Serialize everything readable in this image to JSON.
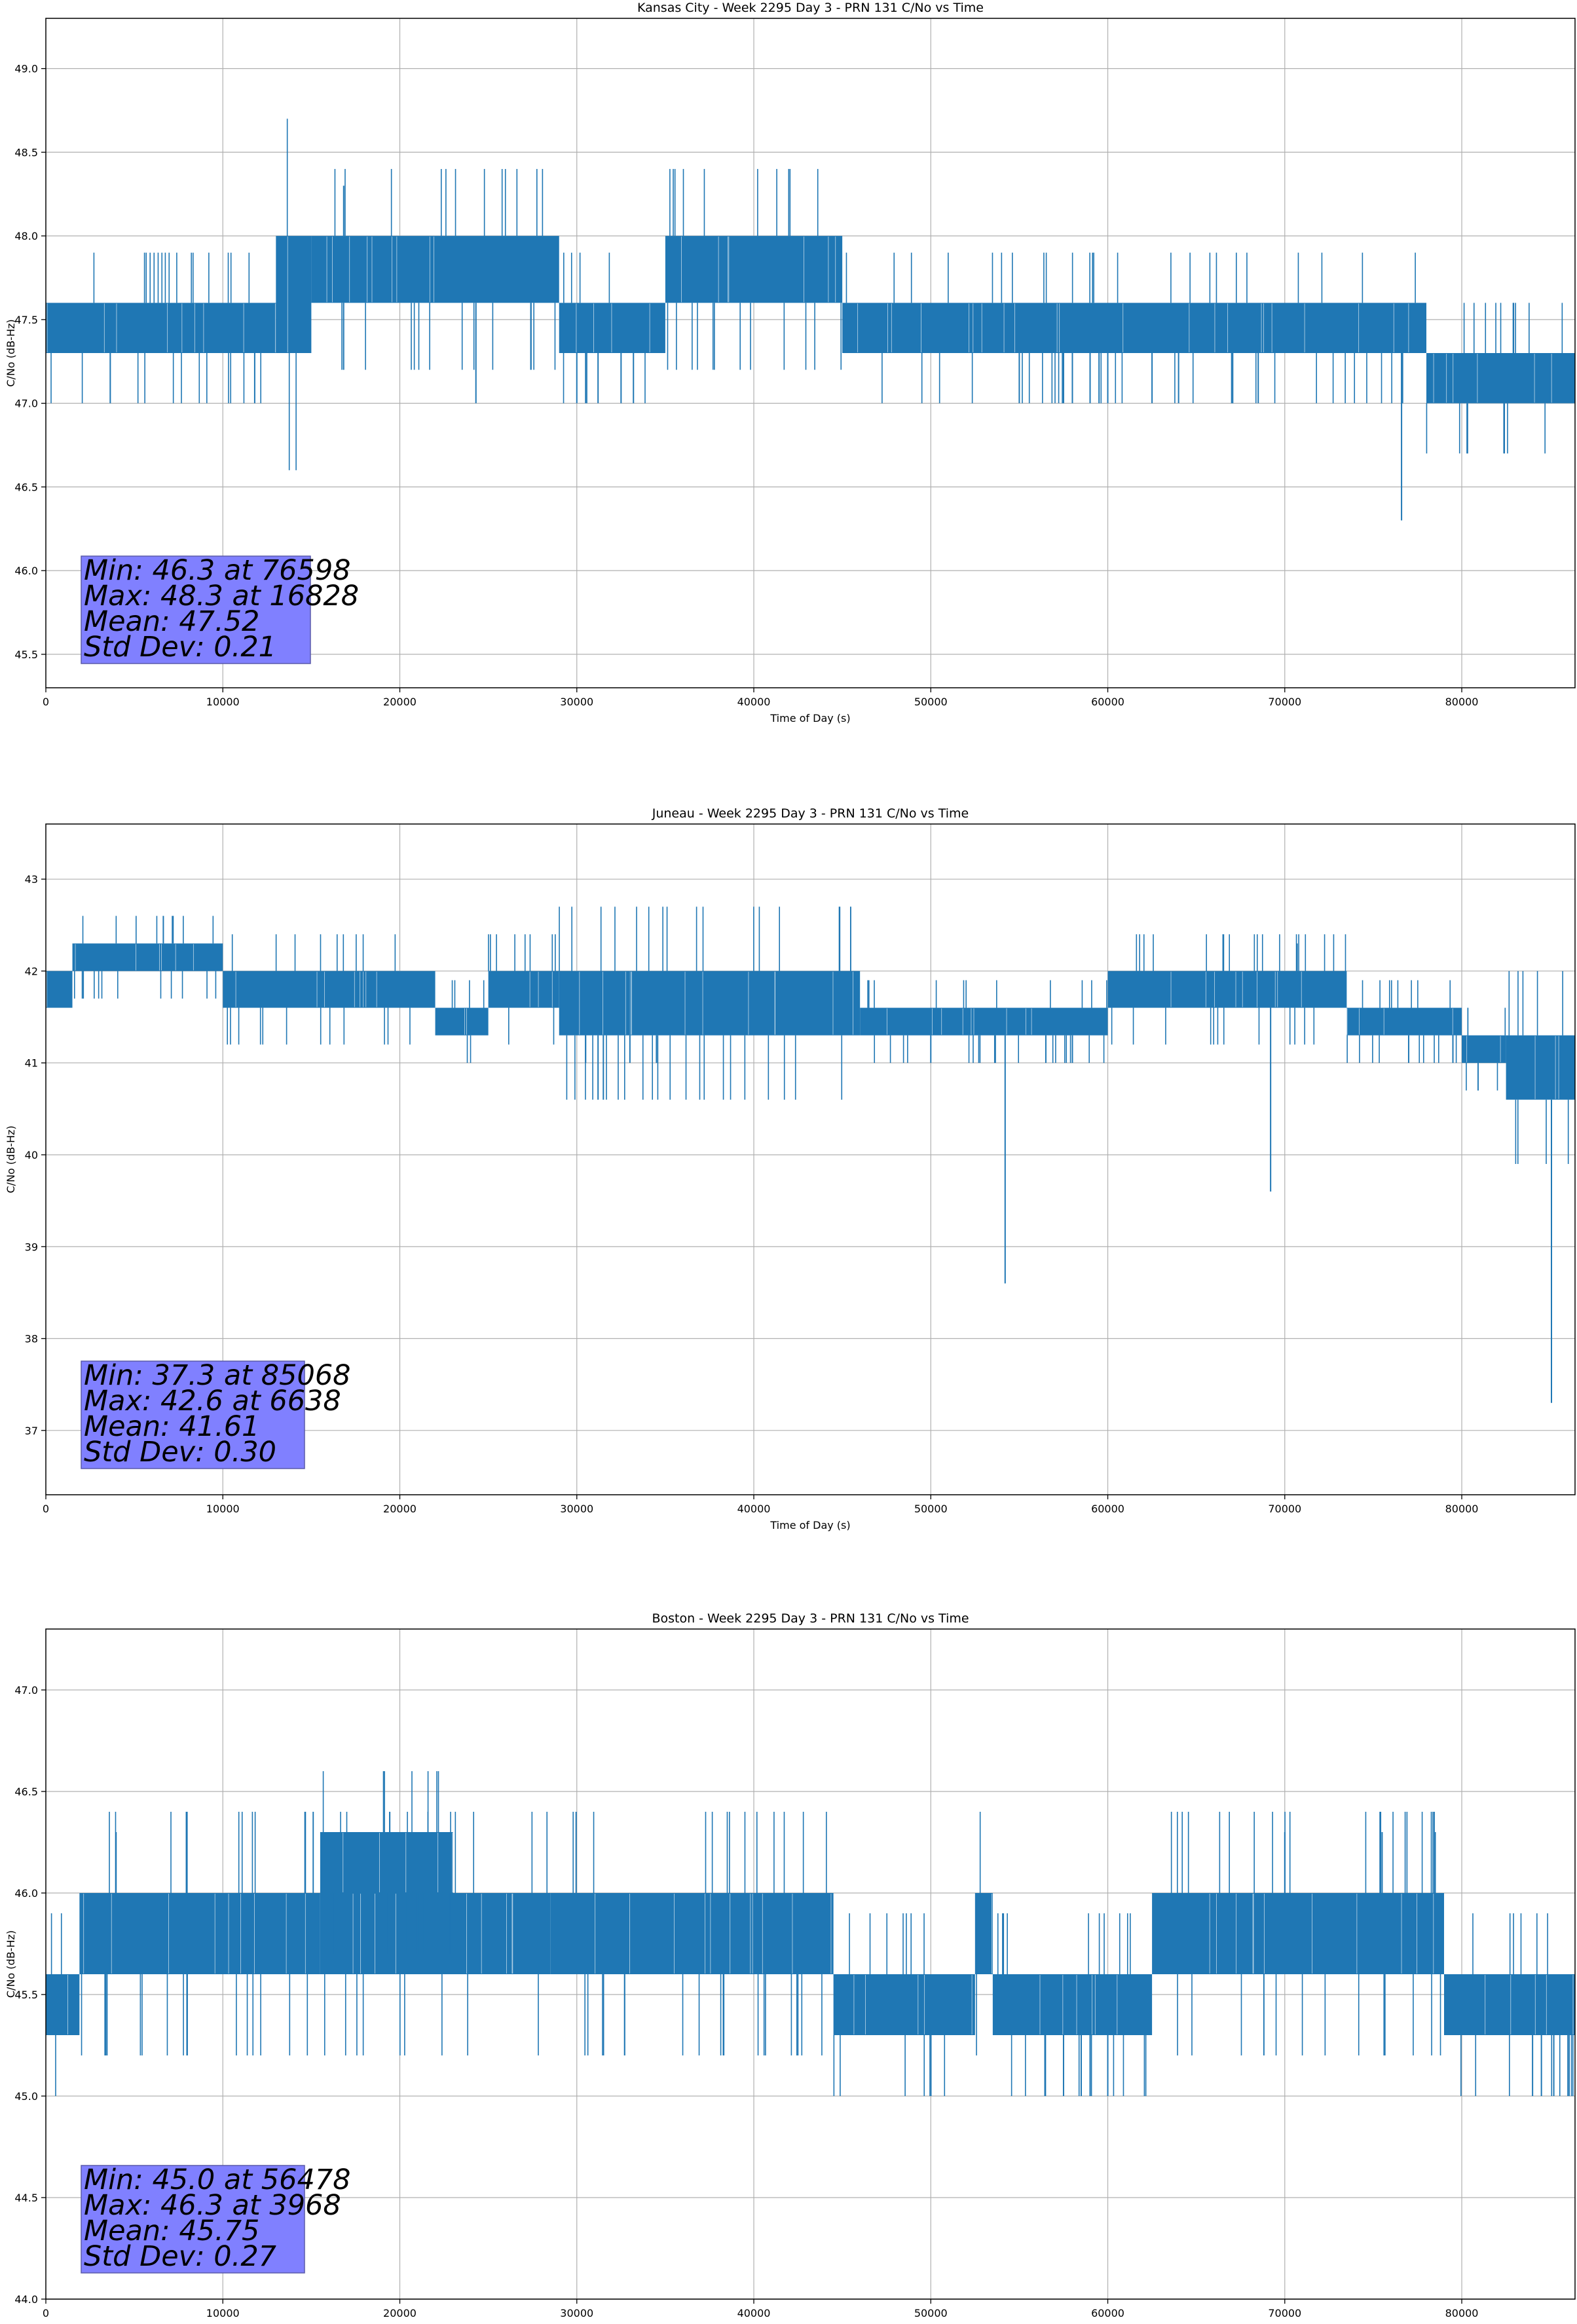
{
  "colors": {
    "line": "#1f77b4",
    "grid": "#b0b0b0",
    "stats_box_fill": "#8080ff",
    "stats_box_edge": "#5a5aaa",
    "axes": "#000000"
  },
  "chart_data": [
    {
      "type": "line",
      "title": "Kansas City - Week 2295 Day 3 - PRN 131 C/No vs Time",
      "xlabel": "Time of Day (s)",
      "ylabel": "C/No (dB-Hz)",
      "xlim": [
        0,
        86400
      ],
      "ylim": [
        45.3,
        49.3
      ],
      "xticks": [
        0,
        10000,
        20000,
        30000,
        40000,
        50000,
        60000,
        70000,
        80000
      ],
      "yticks": [
        45.5,
        46.0,
        46.5,
        47.0,
        47.5,
        48.0,
        48.5,
        49.0
      ],
      "ytick_labels": [
        "45.5",
        "46.0",
        "46.5",
        "47.0",
        "47.5",
        "48.0",
        "48.5",
        "49.0"
      ],
      "grid": true,
      "stats_lines": [
        "Min: 46.3 at 76598",
        "Max: 48.3 at 16828",
        "Mean: 47.52",
        "Std Dev: 0.21"
      ],
      "bands": [
        {
          "x": [
            0,
            13000
          ],
          "y": [
            47.3,
            47.6
          ]
        },
        {
          "x": [
            13000,
            15000
          ],
          "y": [
            47.3,
            48.0
          ]
        },
        {
          "x": [
            15000,
            29000
          ],
          "y": [
            47.6,
            48.0
          ]
        },
        {
          "x": [
            29000,
            35000
          ],
          "y": [
            47.3,
            47.6
          ]
        },
        {
          "x": [
            35000,
            45000
          ],
          "y": [
            47.6,
            48.0
          ]
        },
        {
          "x": [
            45000,
            78000
          ],
          "y": [
            47.3,
            47.6
          ]
        },
        {
          "x": [
            78000,
            86400
          ],
          "y": [
            47.0,
            47.3
          ]
        }
      ],
      "excursions": [
        {
          "x": 11800,
          "y": 47.0
        },
        {
          "x": 16828,
          "y": 48.3
        },
        {
          "x": 24300,
          "y": 47.0
        },
        {
          "x": 30000,
          "y": 47.0
        },
        {
          "x": 30500,
          "y": 47.0
        },
        {
          "x": 31200,
          "y": 47.0
        },
        {
          "x": 32500,
          "y": 47.0
        },
        {
          "x": 33200,
          "y": 47.0
        },
        {
          "x": 55000,
          "y": 47.0
        },
        {
          "x": 57500,
          "y": 47.0
        },
        {
          "x": 58000,
          "y": 47.0
        },
        {
          "x": 59000,
          "y": 47.0
        },
        {
          "x": 60000,
          "y": 47.0
        },
        {
          "x": 62500,
          "y": 47.0
        },
        {
          "x": 64000,
          "y": 47.0
        },
        {
          "x": 67000,
          "y": 47.0
        },
        {
          "x": 68500,
          "y": 47.0
        },
        {
          "x": 76598,
          "y": 46.3
        }
      ]
    },
    {
      "type": "line",
      "title": "Juneau - Week 2295 Day 3 - PRN 131 C/No vs Time",
      "xlabel": "Time of Day (s)",
      "ylabel": "C/No (dB-Hz)",
      "xlim": [
        0,
        86400
      ],
      "ylim": [
        36.3,
        43.6
      ],
      "xticks": [
        0,
        10000,
        20000,
        30000,
        40000,
        50000,
        60000,
        70000,
        80000
      ],
      "yticks": [
        37,
        38,
        39,
        40,
        41,
        42,
        43
      ],
      "ytick_labels": [
        "37",
        "38",
        "39",
        "40",
        "41",
        "42",
        "43"
      ],
      "grid": true,
      "stats_lines": [
        "Min: 37.3 at 85068",
        "Max: 42.6 at 6638",
        "Mean: 41.61",
        "Std Dev: 0.30"
      ],
      "bands": [
        {
          "x": [
            0,
            1500
          ],
          "y": [
            41.6,
            42.0
          ]
        },
        {
          "x": [
            1500,
            10000
          ],
          "y": [
            42.0,
            42.3
          ]
        },
        {
          "x": [
            10000,
            22000
          ],
          "y": [
            41.6,
            42.0
          ]
        },
        {
          "x": [
            22000,
            25000
          ],
          "y": [
            41.3,
            41.6
          ]
        },
        {
          "x": [
            25000,
            29000
          ],
          "y": [
            41.6,
            42.0
          ]
        },
        {
          "x": [
            29000,
            33000
          ],
          "y": [
            41.3,
            42.0
          ]
        },
        {
          "x": [
            33000,
            46000
          ],
          "y": [
            41.3,
            42.0
          ]
        },
        {
          "x": [
            46000,
            60000
          ],
          "y": [
            41.3,
            41.6
          ]
        },
        {
          "x": [
            60000,
            73500
          ],
          "y": [
            41.6,
            42.0
          ]
        },
        {
          "x": [
            73500,
            80000
          ],
          "y": [
            41.3,
            41.6
          ]
        },
        {
          "x": [
            80000,
            82500
          ],
          "y": [
            41.0,
            41.3
          ]
        },
        {
          "x": [
            82500,
            86400
          ],
          "y": [
            40.6,
            41.3
          ]
        }
      ],
      "excursions": [
        {
          "x": 6638,
          "y": 42.6
        },
        {
          "x": 31200,
          "y": 40.6
        },
        {
          "x": 31500,
          "y": 40.6
        },
        {
          "x": 30500,
          "y": 41.0
        },
        {
          "x": 33000,
          "y": 41.0
        },
        {
          "x": 34500,
          "y": 41.0
        },
        {
          "x": 50000,
          "y": 41.0
        },
        {
          "x": 54200,
          "y": 38.6
        },
        {
          "x": 56500,
          "y": 41.0
        },
        {
          "x": 58000,
          "y": 41.0
        },
        {
          "x": 69200,
          "y": 39.6
        },
        {
          "x": 70700,
          "y": 42.3
        },
        {
          "x": 77000,
          "y": 41.0
        },
        {
          "x": 79500,
          "y": 41.0
        },
        {
          "x": 85068,
          "y": 37.3
        }
      ]
    },
    {
      "type": "line",
      "title": "Boston - Week 2295 Day 3 - PRN 131 C/No vs Time",
      "xlabel": "Time of Day (s)",
      "ylabel": "C/No (dB-Hz)",
      "xlim": [
        0,
        86400
      ],
      "ylim": [
        44.0,
        47.3
      ],
      "xticks": [
        0,
        10000,
        20000,
        30000,
        40000,
        50000,
        60000,
        70000,
        80000
      ],
      "yticks": [
        44.0,
        44.5,
        45.0,
        45.5,
        46.0,
        46.5,
        47.0
      ],
      "ytick_labels": [
        "44.0",
        "44.5",
        "45.0",
        "45.5",
        "46.0",
        "46.5",
        "47.0"
      ],
      "grid": true,
      "stats_lines": [
        "Min: 45.0 at 56478",
        "Max: 46.3 at 3968",
        "Mean: 45.75",
        "Std Dev: 0.27"
      ],
      "bands": [
        {
          "x": [
            0,
            1900
          ],
          "y": [
            45.3,
            45.6
          ]
        },
        {
          "x": [
            1900,
            15500
          ],
          "y": [
            45.6,
            46.0
          ]
        },
        {
          "x": [
            15500,
            28500
          ],
          "y": [
            45.6,
            46.0
          ]
        },
        {
          "x": [
            15500,
            23000
          ],
          "y": [
            46.0,
            46.3
          ]
        },
        {
          "x": [
            28500,
            44500
          ],
          "y": [
            45.6,
            46.0
          ]
        },
        {
          "x": [
            44500,
            52500
          ],
          "y": [
            45.3,
            45.6
          ]
        },
        {
          "x": [
            52500,
            53500
          ],
          "y": [
            45.6,
            46.0
          ]
        },
        {
          "x": [
            53500,
            62500
          ],
          "y": [
            45.3,
            45.6
          ]
        },
        {
          "x": [
            62500,
            79000
          ],
          "y": [
            45.6,
            46.0
          ]
        },
        {
          "x": [
            79000,
            86400
          ],
          "y": [
            45.3,
            45.6
          ]
        }
      ],
      "excursions": [
        {
          "x": 3968,
          "y": 46.3
        },
        {
          "x": 56478,
          "y": 45.0
        },
        {
          "x": 57500,
          "y": 45.0
        },
        {
          "x": 58500,
          "y": 45.0
        },
        {
          "x": 59000,
          "y": 45.0
        },
        {
          "x": 60000,
          "y": 45.0
        },
        {
          "x": 84000,
          "y": 45.0
        },
        {
          "x": 84500,
          "y": 45.0
        },
        {
          "x": 85200,
          "y": 45.0
        },
        {
          "x": 86000,
          "y": 45.0
        },
        {
          "x": 70000,
          "y": 46.3
        },
        {
          "x": 75500,
          "y": 46.3
        },
        {
          "x": 78500,
          "y": 46.3
        }
      ]
    }
  ]
}
